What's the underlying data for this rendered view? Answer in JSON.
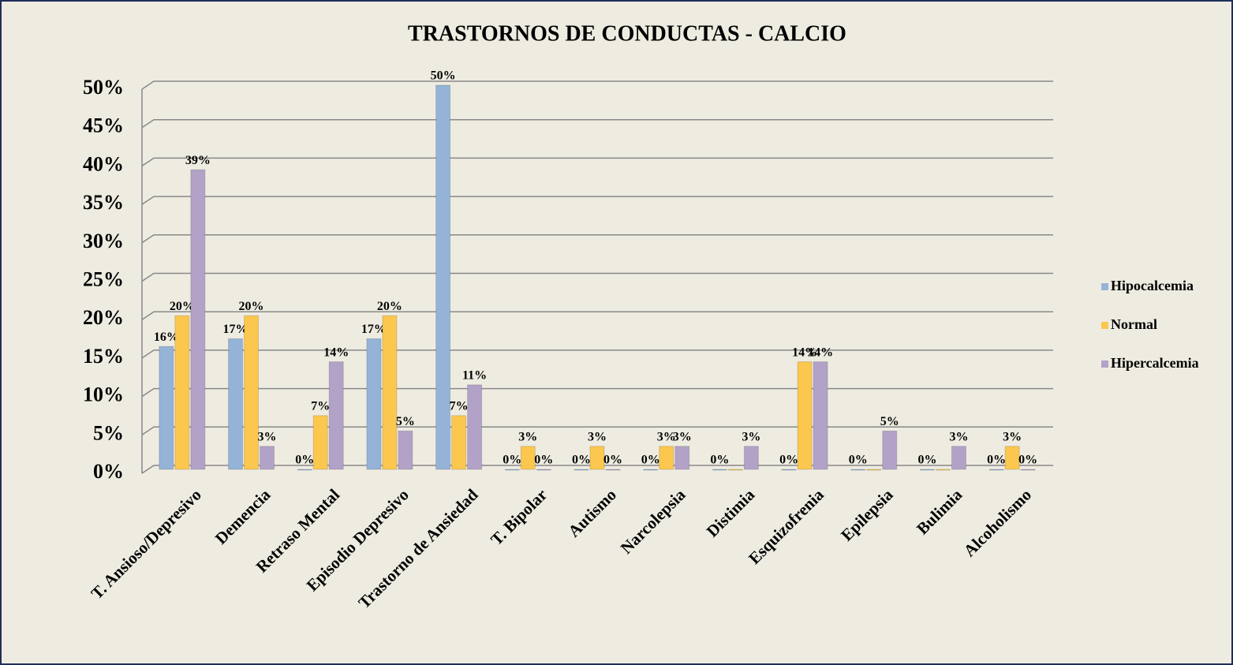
{
  "chart_data": {
    "type": "bar",
    "title": "TRASTORNOS DE CONDUCTAS - CALCIO",
    "categories": [
      "T. Ansioso/Depresivo",
      "Demencia",
      "Retraso Mental",
      "Episodio Depresivo",
      "Trastorno de Ansiedad",
      "T. Bipolar",
      "Autismo",
      "Narcolepsia",
      "Distimia",
      "Esquizofrenia",
      "Epilepsia",
      "Bulimia",
      "Alcoholismo"
    ],
    "series": [
      {
        "name": "Hipocalcemia",
        "color": "#95b3d7",
        "values": [
          16,
          17,
          0,
          17,
          50,
          0,
          0,
          0,
          0,
          0,
          0,
          0,
          0
        ],
        "value_labels": [
          "16%",
          "17%",
          "0%",
          "17%",
          "50%",
          "0%",
          "0%",
          "0%",
          "0%",
          "0%",
          "0%",
          "0%",
          "0%"
        ]
      },
      {
        "name": "Normal",
        "color": "#fcc74f",
        "values": [
          20,
          20,
          7,
          20,
          7,
          3,
          3,
          3,
          0,
          14,
          0,
          0,
          3
        ],
        "value_labels": [
          "20%",
          "20%",
          "7%",
          "20%",
          "7%",
          "3%",
          "3%",
          "3%",
          null,
          "14%",
          null,
          null,
          "3%"
        ]
      },
      {
        "name": "Hipercalcemia",
        "color": "#b3a2c7",
        "values": [
          39,
          3,
          14,
          5,
          11,
          0,
          0,
          3,
          3,
          14,
          5,
          3,
          0
        ],
        "value_labels": [
          "39%",
          "3%",
          "14%",
          "5%",
          "11%",
          "0%",
          "0%",
          "3%",
          "3%",
          "14%",
          "5%",
          "3%",
          "0%"
        ]
      }
    ],
    "ylim": [
      0,
      50
    ],
    "yticks": [
      {
        "value": 0,
        "label": "0%"
      },
      {
        "value": 5,
        "label": "5%"
      },
      {
        "value": 10,
        "label": "10%"
      },
      {
        "value": 15,
        "label": "15%"
      },
      {
        "value": 20,
        "label": "20%"
      },
      {
        "value": 25,
        "label": "25%"
      },
      {
        "value": 30,
        "label": "30%"
      },
      {
        "value": 35,
        "label": "35%"
      },
      {
        "value": 40,
        "label": "40%"
      },
      {
        "value": 45,
        "label": "45%"
      },
      {
        "value": 50,
        "label": "50%"
      }
    ],
    "grid": true,
    "legend": "right"
  }
}
